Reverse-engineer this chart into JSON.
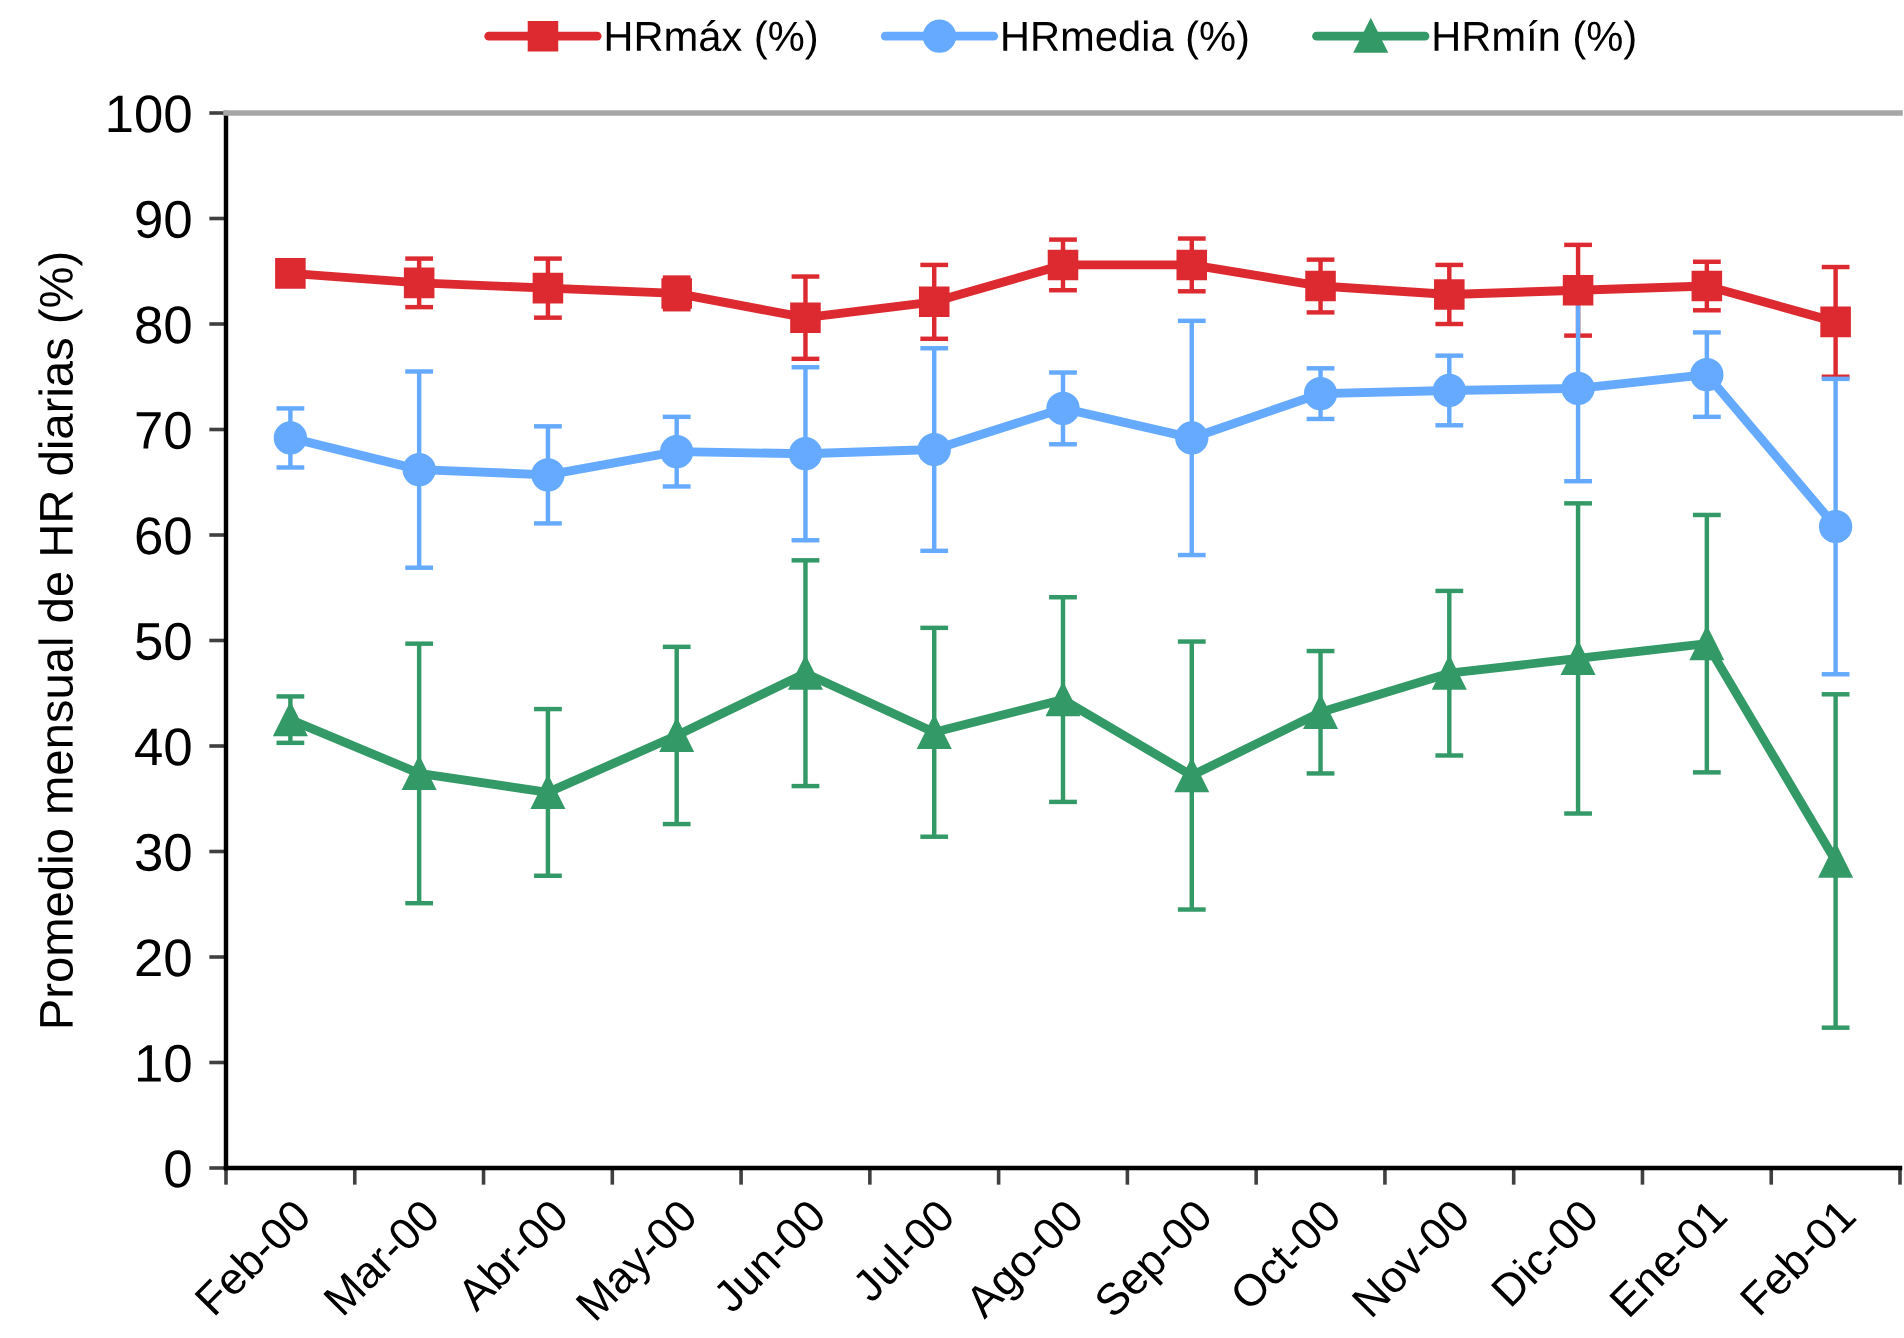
{
  "chart_data": {
    "type": "line",
    "ylabel": "Promedio mensual de HR diarias (%)",
    "categories": [
      "Feb-00",
      "Mar-00",
      "Abr-00",
      "May-00",
      "Jun-00",
      "Jul-00",
      "Ago-00",
      "Sep-00",
      "Oct-00",
      "Nov-00",
      "Dic-00",
      "Ene-01",
      "Feb-01"
    ],
    "ylim": [
      0,
      100
    ],
    "yticks": [
      0,
      10,
      20,
      30,
      40,
      50,
      60,
      70,
      80,
      90,
      100
    ],
    "grid": false,
    "legend": "top",
    "line_style": "solid",
    "series": [
      {
        "name": "HRmáx (%)",
        "color": "#dc2a30",
        "marker": "square",
        "values": [
          84.8,
          83.9,
          83.4,
          82.9,
          80.6,
          82.1,
          85.6,
          85.6,
          83.6,
          82.8,
          83.2,
          83.6,
          80.2
        ],
        "errors": [
          null,
          2.3,
          2.8,
          1.5,
          3.9,
          3.5,
          2.4,
          2.5,
          2.5,
          2.8,
          4.3,
          2.3,
          5.2
        ]
      },
      {
        "name": "HRmedia (%)",
        "color": "#66aaff",
        "marker": "circle",
        "values": [
          69.2,
          66.2,
          65.7,
          67.9,
          67.7,
          68.1,
          72.0,
          69.2,
          73.4,
          73.7,
          73.9,
          75.2,
          60.8
        ],
        "errors": [
          2.8,
          9.3,
          4.6,
          3.3,
          8.2,
          9.6,
          3.4,
          11.1,
          2.4,
          3.3,
          8.8,
          4.0,
          14.0
        ]
      },
      {
        "name": "HRmín (%)",
        "color": "#339966",
        "marker": "triangle",
        "values": [
          42.5,
          37.4,
          35.6,
          41.0,
          46.9,
          41.3,
          44.4,
          37.2,
          43.2,
          46.9,
          48.3,
          49.7,
          29.1
        ],
        "errors": [
          2.2,
          12.3,
          7.9,
          8.4,
          10.7,
          9.9,
          9.7,
          12.7,
          5.8,
          7.8,
          14.7,
          12.2,
          15.8
        ]
      }
    ]
  }
}
